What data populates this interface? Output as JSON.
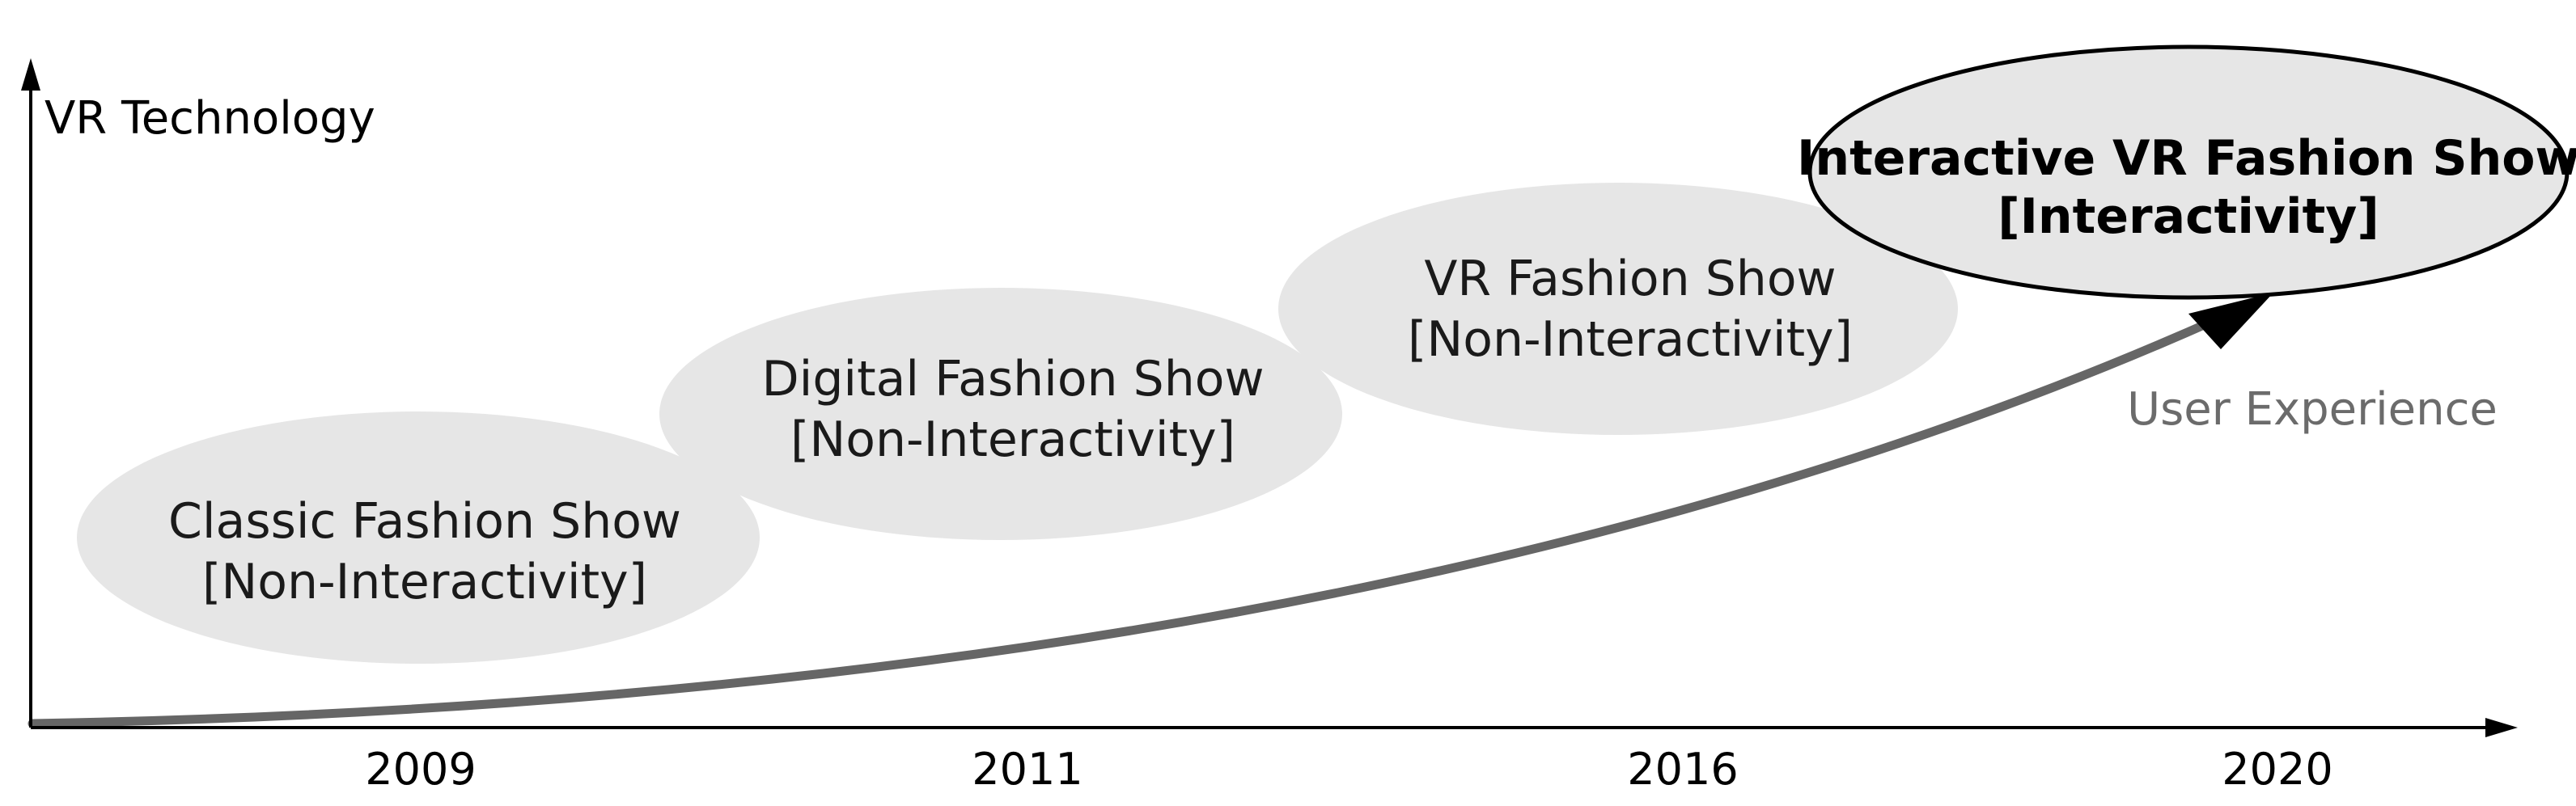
{
  "axes": {
    "y_title": "VR Technology"
  },
  "years": [
    "2009",
    "2011",
    "2016",
    "2020"
  ],
  "stages": [
    {
      "title": "Classic Fashion Show",
      "subtitle": "[Non-Interactivity]"
    },
    {
      "title": "Digital Fashion Show",
      "subtitle": "[Non-Interactivity]"
    },
    {
      "title": "VR Fashion Show",
      "subtitle": "[Non-Interactivity]"
    },
    {
      "title": "Interactive VR Fashion Show",
      "subtitle": "[Interactivity]"
    }
  ],
  "trend": {
    "label": "User Experience",
    "line_color": "#666666"
  },
  "colors": {
    "ellipse_fill": "#e6e6e6",
    "axis": "#000000",
    "trend_label": "#6b6b6b"
  }
}
